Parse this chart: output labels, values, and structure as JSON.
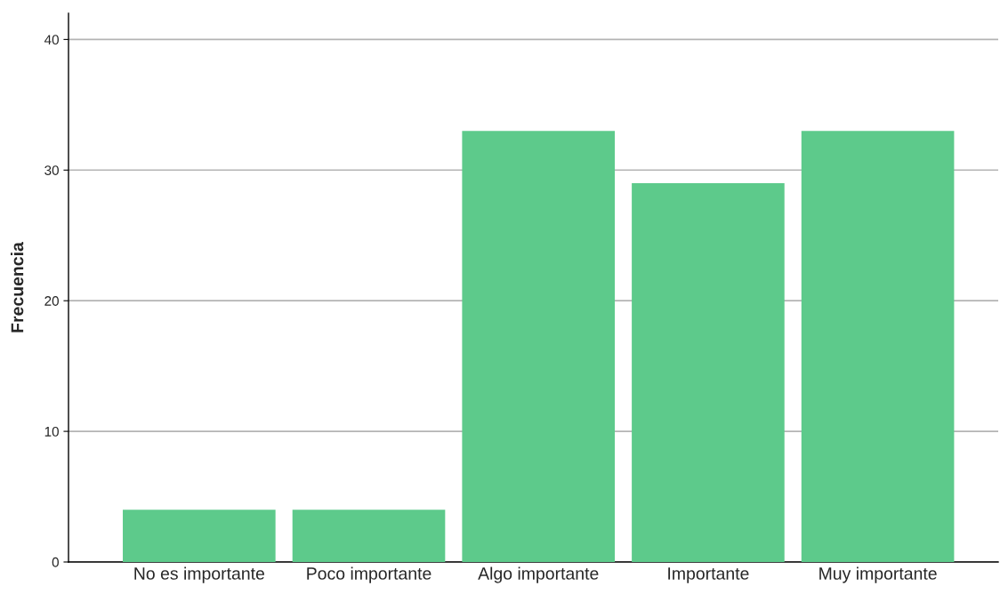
{
  "chart_data": {
    "type": "bar",
    "ylabel": "Frecuencia",
    "categories": [
      "No es importante",
      "Poco importante",
      "Algo importante",
      "Importante",
      "Muy importante"
    ],
    "values": [
      4,
      4,
      33,
      29,
      33
    ],
    "color": "#5dca8b",
    "ylim": [
      0,
      42
    ],
    "yticks": [
      0,
      10,
      20,
      30,
      40
    ],
    "grid": "y"
  }
}
